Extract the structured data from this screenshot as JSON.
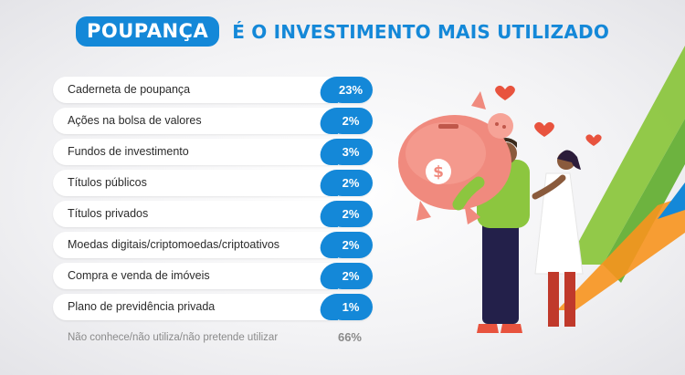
{
  "title": {
    "badge": "POUPANÇA",
    "rest": "É O INVESTIMENTO MAIS UTILIZADO"
  },
  "chart_data": {
    "type": "table",
    "title": "POUPANÇA É O INVESTIMENTO MAIS UTILIZADO",
    "categories": [
      "Caderneta de poupança",
      "Ações na bolsa de valores",
      "Fundos de investimento",
      "Títulos públicos",
      "Títulos privados",
      "Moedas digitais/criptomoedas/criptoativos",
      "Compra e venda de imóveis",
      "Plano de previdência privada"
    ],
    "values": [
      23,
      2,
      3,
      2,
      2,
      2,
      2,
      1
    ],
    "labels": [
      "23%",
      "2%",
      "3%",
      "2%",
      "2%",
      "2%",
      "2%",
      "1%"
    ],
    "footer": {
      "label": "Não conhece/não utiliza/não pretende utilizar",
      "value": 66,
      "value_label": "66%"
    }
  },
  "colors": {
    "accent": "#1488d8",
    "green": "#8cc63f",
    "orange": "#f7931e",
    "heart": "#e8533e",
    "pig": "#f08a7e"
  },
  "illustration": {
    "icon": "couple-holding-piggy-bank-illustration"
  }
}
